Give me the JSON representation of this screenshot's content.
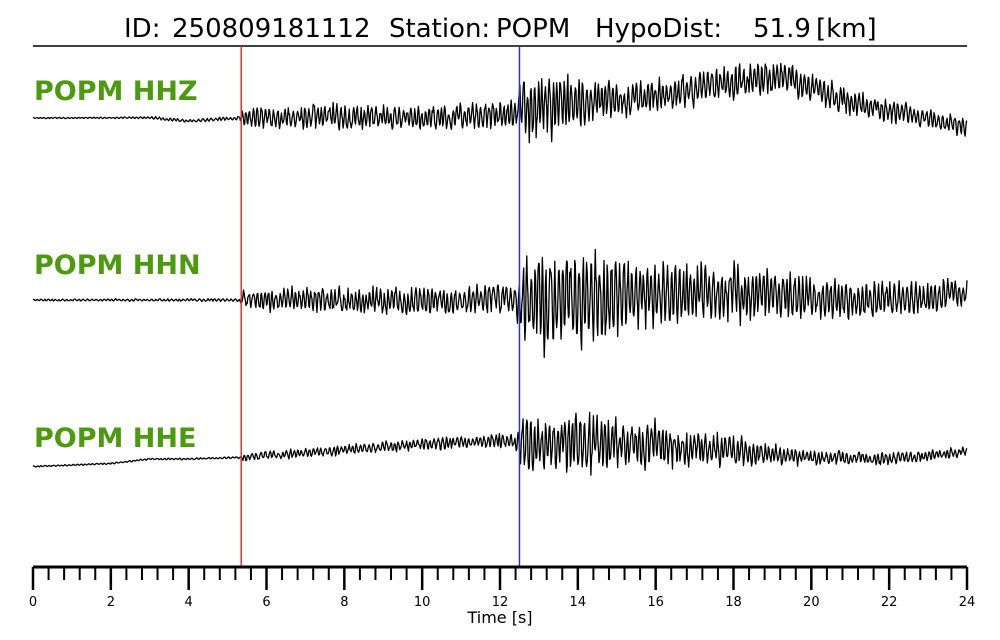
{
  "chart_data": {
    "type": "line",
    "title": {
      "id_label": "ID:",
      "id_value": "250809181112",
      "station_label": "Station:",
      "station_value": "POPM",
      "hypodist_label": "HypoDist:",
      "hypodist_value": "51.9",
      "hypodist_unit": "[km]"
    },
    "xlabel": "Time [s]",
    "xlim": [
      0,
      24
    ],
    "major_ticks": [
      0,
      2,
      4,
      6,
      8,
      10,
      12,
      14,
      16,
      18,
      20,
      22,
      24
    ],
    "minor_tick_step": 0.4,
    "picks": [
      {
        "phase": "P",
        "time": 5.35,
        "color": "#e8302a"
      },
      {
        "phase": "S",
        "time": 12.5,
        "color": "#2c33d6"
      }
    ],
    "label_color": "#4c9a0e",
    "trace_color": "#000000",
    "series": [
      {
        "name": "POPM HHZ",
        "baseline": 0.0,
        "envelope": [
          [
            0,
            0.02
          ],
          [
            2,
            0.02
          ],
          [
            3.2,
            0.04
          ],
          [
            5.3,
            0.06
          ],
          [
            5.4,
            0.32
          ],
          [
            8,
            0.38
          ],
          [
            10,
            0.34
          ],
          [
            12.4,
            0.44
          ],
          [
            12.6,
            1.0
          ],
          [
            13.5,
            1.0
          ],
          [
            14.5,
            0.55
          ],
          [
            16,
            0.48
          ],
          [
            18,
            0.52
          ],
          [
            20,
            0.45
          ],
          [
            22,
            0.35
          ],
          [
            24,
            0.3
          ]
        ],
        "trend": [
          [
            0,
            0.0
          ],
          [
            3,
            0.01
          ],
          [
            4,
            -0.1
          ],
          [
            5.3,
            0.0
          ],
          [
            8,
            0.05
          ],
          [
            10,
            0.0
          ],
          [
            12,
            0.1
          ],
          [
            13,
            0.3
          ],
          [
            14,
            0.45
          ],
          [
            16,
            0.7
          ],
          [
            18,
            1.2
          ],
          [
            19.5,
            1.3
          ],
          [
            21,
            0.5
          ],
          [
            22.5,
            0.1
          ],
          [
            24,
            -0.3
          ]
        ]
      },
      {
        "name": "POPM HHN",
        "baseline": 0.0,
        "envelope": [
          [
            0,
            0.02
          ],
          [
            5.3,
            0.03
          ],
          [
            5.4,
            0.2
          ],
          [
            9,
            0.28
          ],
          [
            12.4,
            0.3
          ],
          [
            12.6,
            1.0
          ],
          [
            14.8,
            1.0
          ],
          [
            15.5,
            0.7
          ],
          [
            18,
            0.55
          ],
          [
            20,
            0.45
          ],
          [
            24,
            0.3
          ]
        ],
        "trend": [
          [
            0,
            0.0
          ],
          [
            5.3,
            0.0
          ],
          [
            8,
            0.0
          ],
          [
            10,
            -0.05
          ],
          [
            12,
            0.05
          ],
          [
            14,
            0.0
          ],
          [
            16,
            0.1
          ],
          [
            18,
            0.15
          ],
          [
            20,
            0.05
          ],
          [
            22,
            0.0
          ],
          [
            24,
            0.15
          ]
        ]
      },
      {
        "name": "POPM HHE",
        "baseline": 0.0,
        "envelope": [
          [
            0,
            0.02
          ],
          [
            5.3,
            0.03
          ],
          [
            5.4,
            0.12
          ],
          [
            10,
            0.18
          ],
          [
            12.4,
            0.25
          ],
          [
            12.6,
            0.9
          ],
          [
            14.8,
            0.9
          ],
          [
            16.5,
            0.6
          ],
          [
            18,
            0.45
          ],
          [
            20,
            0.2
          ],
          [
            22,
            0.2
          ],
          [
            24,
            0.15
          ]
        ],
        "trend": [
          [
            0,
            -0.55
          ],
          [
            2,
            -0.45
          ],
          [
            3,
            -0.3
          ],
          [
            4,
            -0.3
          ],
          [
            5.3,
            -0.25
          ],
          [
            8,
            0.0
          ],
          [
            10,
            0.2
          ],
          [
            12,
            0.3
          ],
          [
            14,
            0.2
          ],
          [
            16,
            0.15
          ],
          [
            18,
            -0.05
          ],
          [
            20,
            -0.25
          ],
          [
            22,
            -0.3
          ],
          [
            24,
            -0.05
          ]
        ]
      }
    ]
  }
}
